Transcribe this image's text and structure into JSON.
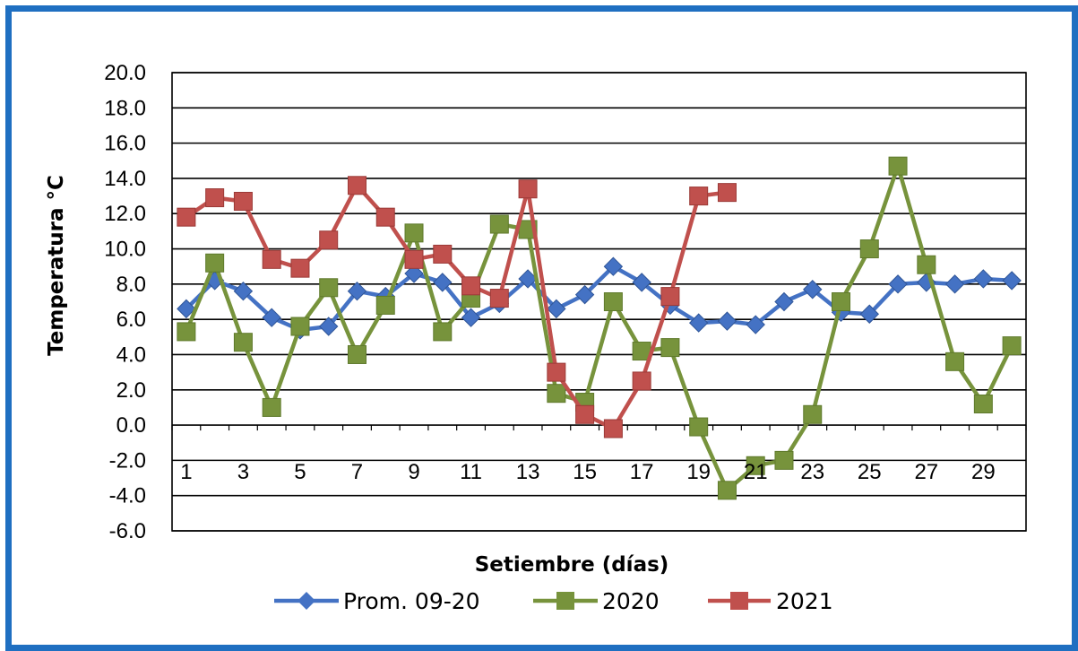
{
  "chart_data": {
    "type": "line",
    "title": "",
    "xlabel": "Setiembre (días)",
    "ylabel": "Temperatura  °C",
    "ylim": [
      -6,
      20
    ],
    "y_ticks": [
      "20.0",
      "18.0",
      "16.0",
      "14.0",
      "12.0",
      "10.0",
      "8.0",
      "6.0",
      "4.0",
      "2.0",
      "0.0",
      "-2.0",
      "-4.0",
      "-6.0"
    ],
    "x_ticks": [
      "1",
      "3",
      "5",
      "7",
      "9",
      "11",
      "13",
      "15",
      "17",
      "19",
      "21",
      "23",
      "25",
      "27",
      "29"
    ],
    "x": [
      1,
      2,
      3,
      4,
      5,
      6,
      7,
      8,
      9,
      10,
      11,
      12,
      13,
      14,
      15,
      16,
      17,
      18,
      19,
      20,
      21,
      22,
      23,
      24,
      25,
      26,
      27,
      28,
      29,
      30
    ],
    "grid": true,
    "legend_position": "bottom",
    "series": [
      {
        "name": "Prom. 09-20",
        "color": "#4472c4",
        "marker": "diamond",
        "values": [
          6.6,
          8.2,
          7.6,
          6.1,
          5.4,
          5.6,
          7.6,
          7.3,
          8.6,
          8.1,
          6.1,
          6.9,
          8.3,
          6.6,
          7.4,
          9.0,
          8.1,
          6.8,
          5.8,
          5.9,
          5.7,
          7.0,
          7.7,
          6.4,
          6.3,
          8.0,
          8.1,
          8.0,
          8.3,
          8.2
        ]
      },
      {
        "name": "2020",
        "color": "#77933c",
        "marker": "square",
        "values": [
          5.3,
          9.2,
          4.7,
          1.0,
          5.6,
          7.8,
          4.0,
          6.8,
          10.9,
          5.3,
          7.2,
          11.4,
          11.1,
          1.8,
          1.3,
          7.0,
          4.2,
          4.4,
          -0.1,
          -3.7,
          -2.3,
          -2.0,
          0.6,
          7.0,
          10.0,
          14.7,
          9.1,
          3.6,
          1.2,
          4.5
        ]
      },
      {
        "name": "2021",
        "color": "#c0504d",
        "marker": "square",
        "values": [
          11.8,
          12.9,
          12.7,
          9.4,
          8.9,
          10.5,
          13.6,
          11.8,
          9.4,
          9.7,
          7.9,
          7.2,
          13.4,
          3.0,
          0.6,
          -0.2,
          2.5,
          7.3,
          13.0,
          13.2,
          null,
          null,
          null,
          null,
          null,
          null,
          null,
          null,
          null,
          null
        ]
      }
    ]
  }
}
